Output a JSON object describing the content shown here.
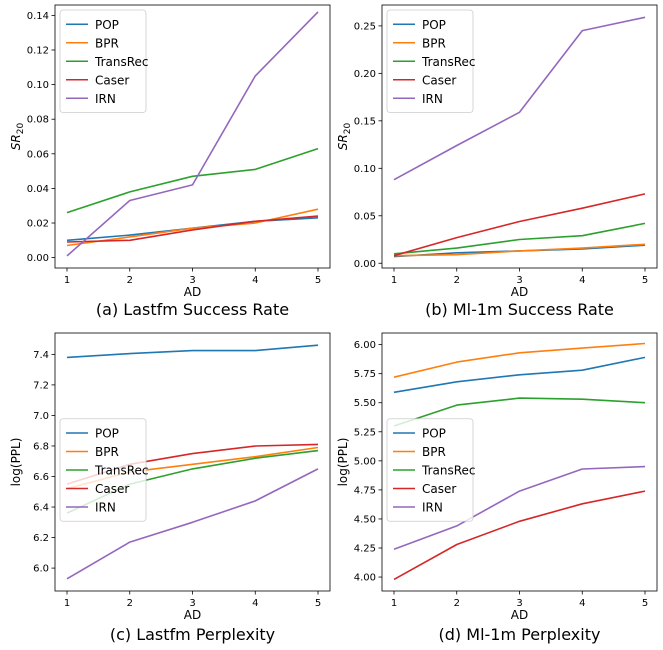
{
  "colors": {
    "POP": "#1f77b4",
    "BPR": "#ff7f0e",
    "TransRec": "#2ca02c",
    "Caser": "#d62728",
    "IRN": "#9467bd"
  },
  "chart_data": [
    {
      "type": "line",
      "caption": "(a) Lastfm Success Rate",
      "xlabel": "AD",
      "ylabel": "SR20",
      "ylabel_main": "SR",
      "ylabel_sub": "20",
      "x": [
        1,
        2,
        3,
        4,
        5
      ],
      "xticks": [
        "1",
        "2",
        "3",
        "4",
        "5"
      ],
      "ylim": [
        -0.006,
        0.146
      ],
      "yticks": [
        0.0,
        0.02,
        0.04,
        0.06,
        0.08,
        0.1,
        0.12,
        0.14
      ],
      "ytick_labels": [
        "0.00",
        "0.02",
        "0.04",
        "0.06",
        "0.08",
        "0.10",
        "0.12",
        "0.14"
      ],
      "legend": "upper-left",
      "series": [
        {
          "name": "POP",
          "values": [
            0.01,
            0.013,
            0.017,
            0.021,
            0.023
          ]
        },
        {
          "name": "BPR",
          "values": [
            0.007,
            0.012,
            0.017,
            0.02,
            0.028
          ]
        },
        {
          "name": "TransRec",
          "values": [
            0.026,
            0.038,
            0.047,
            0.051,
            0.063
          ]
        },
        {
          "name": "Caser",
          "values": [
            0.009,
            0.01,
            0.016,
            0.021,
            0.024
          ]
        },
        {
          "name": "IRN",
          "values": [
            0.001,
            0.033,
            0.042,
            0.105,
            0.142
          ]
        }
      ]
    },
    {
      "type": "line",
      "caption": "(b) Ml-1m Success Rate",
      "xlabel": "AD",
      "ylabel": "SR20",
      "ylabel_main": "SR",
      "ylabel_sub": "20",
      "x": [
        1,
        2,
        3,
        4,
        5
      ],
      "xticks": [
        "1",
        "2",
        "3",
        "4",
        "5"
      ],
      "ylim": [
        -0.005,
        0.272
      ],
      "yticks": [
        0.0,
        0.05,
        0.1,
        0.15,
        0.2,
        0.25
      ],
      "ytick_labels": [
        "0.00",
        "0.05",
        "0.10",
        "0.15",
        "0.20",
        "0.25"
      ],
      "legend": "upper-left",
      "series": [
        {
          "name": "POP",
          "values": [
            0.007,
            0.011,
            0.013,
            0.015,
            0.019
          ]
        },
        {
          "name": "BPR",
          "values": [
            0.008,
            0.009,
            0.013,
            0.016,
            0.02
          ]
        },
        {
          "name": "TransRec",
          "values": [
            0.01,
            0.016,
            0.025,
            0.029,
            0.042
          ]
        },
        {
          "name": "Caser",
          "values": [
            0.008,
            0.027,
            0.044,
            0.058,
            0.073
          ]
        },
        {
          "name": "IRN",
          "values": [
            0.088,
            0.124,
            0.159,
            0.245,
            0.259
          ]
        }
      ]
    },
    {
      "type": "line",
      "caption": "(c) Lastfm Perplexity",
      "xlabel": "AD",
      "ylabel": "log(PPL)",
      "x": [
        1,
        2,
        3,
        4,
        5
      ],
      "xticks": [
        "1",
        "2",
        "3",
        "4",
        "5"
      ],
      "ylim": [
        5.85,
        7.54
      ],
      "yticks": [
        6.0,
        6.2,
        6.4,
        6.6,
        6.8,
        7.0,
        7.2,
        7.4
      ],
      "ytick_labels": [
        "6.0",
        "6.2",
        "6.4",
        "6.6",
        "6.8",
        "7.0",
        "7.2",
        "7.4"
      ],
      "legend": "center-left",
      "series": [
        {
          "name": "POP",
          "values": [
            7.38,
            7.405,
            7.425,
            7.425,
            7.46
          ]
        },
        {
          "name": "BPR",
          "values": [
            6.52,
            6.63,
            6.68,
            6.73,
            6.79
          ]
        },
        {
          "name": "TransRec",
          "values": [
            6.36,
            6.55,
            6.65,
            6.72,
            6.77
          ]
        },
        {
          "name": "Caser",
          "values": [
            6.55,
            6.68,
            6.75,
            6.8,
            6.81
          ]
        },
        {
          "name": "IRN",
          "values": [
            5.93,
            6.17,
            6.3,
            6.44,
            6.65
          ]
        }
      ]
    },
    {
      "type": "line",
      "caption": "(d) Ml-1m Perplexity",
      "xlabel": "AD",
      "ylabel": "log(PPL)",
      "x": [
        1,
        2,
        3,
        4,
        5
      ],
      "xticks": [
        "1",
        "2",
        "3",
        "4",
        "5"
      ],
      "ylim": [
        3.88,
        6.1
      ],
      "yticks": [
        4.0,
        4.25,
        4.5,
        4.75,
        5.0,
        5.25,
        5.5,
        5.75,
        6.0
      ],
      "ytick_labels": [
        "4.00",
        "4.25",
        "4.50",
        "4.75",
        "5.00",
        "5.25",
        "5.50",
        "5.75",
        "6.00"
      ],
      "legend": "center-left",
      "series": [
        {
          "name": "POP",
          "values": [
            5.59,
            5.68,
            5.74,
            5.78,
            5.89
          ]
        },
        {
          "name": "BPR",
          "values": [
            5.72,
            5.85,
            5.93,
            5.97,
            6.01
          ]
        },
        {
          "name": "TransRec",
          "values": [
            5.3,
            5.48,
            5.54,
            5.53,
            5.5
          ]
        },
        {
          "name": "Caser",
          "values": [
            3.98,
            4.28,
            4.48,
            4.63,
            4.74
          ]
        },
        {
          "name": "IRN",
          "values": [
            4.24,
            4.44,
            4.74,
            4.93,
            4.95
          ]
        }
      ]
    }
  ]
}
